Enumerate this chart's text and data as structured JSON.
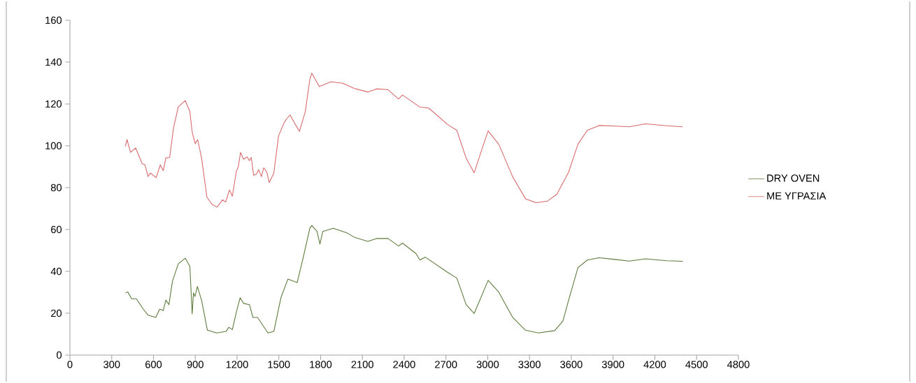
{
  "chart_data": {
    "type": "line",
    "xlim": [
      0,
      4800
    ],
    "ylim": [
      0,
      160
    ],
    "xticks": [
      0,
      300,
      600,
      900,
      1200,
      1500,
      1800,
      2100,
      2400,
      2700,
      3000,
      3300,
      3600,
      3900,
      4200,
      4500,
      4800
    ],
    "yticks": [
      0,
      20,
      40,
      60,
      80,
      100,
      120,
      140,
      160
    ],
    "grid": false,
    "legend": "right",
    "marker": "none",
    "line_style": "solid",
    "series": [
      {
        "name": "DRY OVEN",
        "color": "#5a7a3a",
        "x": [
          398,
          415,
          443,
          477,
          527,
          561,
          616,
          644,
          670,
          689,
          711,
          736,
          778,
          828,
          861,
          878,
          887,
          898,
          915,
          945,
          987,
          1054,
          1121,
          1141,
          1166,
          1196,
          1222,
          1247,
          1289,
          1314,
          1347,
          1422,
          1464,
          1515,
          1565,
          1632,
          1674,
          1723,
          1737,
          1774,
          1795,
          1816,
          1891,
          1992,
          2042,
          2139,
          2201,
          2284,
          2360,
          2388,
          2485,
          2513,
          2552,
          2711,
          2778,
          2845,
          2903,
          3003,
          3079,
          3179,
          3271,
          3364,
          3481,
          3540,
          3581,
          3648,
          3715,
          3799,
          3915,
          4016,
          4133,
          4284,
          4401
        ],
        "values": [
          29.7,
          30.2,
          26.9,
          26.9,
          21.9,
          19.1,
          18.0,
          21.9,
          21.3,
          26.3,
          24.1,
          35.2,
          43.6,
          46.3,
          42.4,
          19.7,
          29.7,
          28.0,
          32.8,
          26.3,
          11.9,
          10.6,
          11.3,
          13.3,
          12.1,
          20.8,
          27.4,
          24.7,
          24.1,
          18.0,
          18.0,
          10.6,
          11.3,
          27.4,
          36.3,
          34.7,
          46.3,
          60.7,
          61.9,
          59.1,
          53.0,
          59.1,
          60.6,
          58.3,
          56.3,
          54.3,
          55.7,
          55.7,
          52.1,
          53.5,
          48.5,
          45.4,
          46.8,
          39.6,
          36.8,
          24.1,
          19.9,
          35.7,
          30.1,
          18.0,
          11.9,
          10.6,
          11.7,
          16.3,
          26.3,
          41.8,
          45.4,
          46.5,
          45.7,
          44.9,
          46.0,
          45.1,
          44.8
        ]
      },
      {
        "name": "ΜΕ ΥΓΡΑΣΙΑ",
        "color": "#d9686a",
        "x": [
          398,
          410,
          435,
          472,
          519,
          539,
          561,
          577,
          619,
          649,
          670,
          689,
          716,
          744,
          778,
          828,
          861,
          878,
          900,
          917,
          945,
          984,
          1021,
          1057,
          1096,
          1118,
          1146,
          1166,
          1196,
          1208,
          1225,
          1247,
          1272,
          1289,
          1302,
          1319,
          1339,
          1355,
          1375,
          1392,
          1414,
          1431,
          1464,
          1498,
          1536,
          1557,
          1581,
          1623,
          1648,
          1690,
          1723,
          1737,
          1765,
          1790,
          1874,
          1958,
          2042,
          2139,
          2201,
          2284,
          2360,
          2388,
          2510,
          2577,
          2711,
          2778,
          2845,
          2903,
          2962,
          3003,
          3079,
          3179,
          3271,
          3347,
          3430,
          3497,
          3581,
          3648,
          3715,
          3799,
          3915,
          4016,
          4133,
          4284,
          4401
        ],
        "values": [
          99.7,
          103.0,
          96.9,
          98.9,
          91.4,
          90.9,
          85.3,
          87.0,
          84.8,
          90.9,
          88.1,
          94.2,
          94.4,
          108.6,
          118.6,
          121.6,
          116.4,
          106.4,
          101.0,
          103.0,
          94.2,
          75.4,
          72.0,
          70.7,
          74.2,
          73.1,
          78.9,
          75.9,
          88.1,
          89.7,
          96.8,
          93.6,
          94.7,
          92.9,
          94.4,
          85.9,
          86.4,
          88.6,
          85.3,
          89.5,
          87.4,
          82.4,
          86.9,
          104.7,
          110.8,
          113.0,
          114.7,
          109.7,
          106.9,
          116.3,
          131.9,
          134.7,
          131.3,
          128.3,
          130.6,
          129.9,
          127.4,
          125.7,
          127.2,
          126.8,
          122.4,
          124.3,
          118.6,
          118.0,
          110.2,
          107.4,
          94.1,
          87.1,
          99.1,
          107.1,
          100.8,
          85.2,
          74.7,
          72.8,
          73.6,
          76.9,
          87.4,
          100.8,
          107.4,
          109.7,
          109.4,
          109.1,
          110.5,
          109.6,
          109.1
        ]
      }
    ]
  }
}
